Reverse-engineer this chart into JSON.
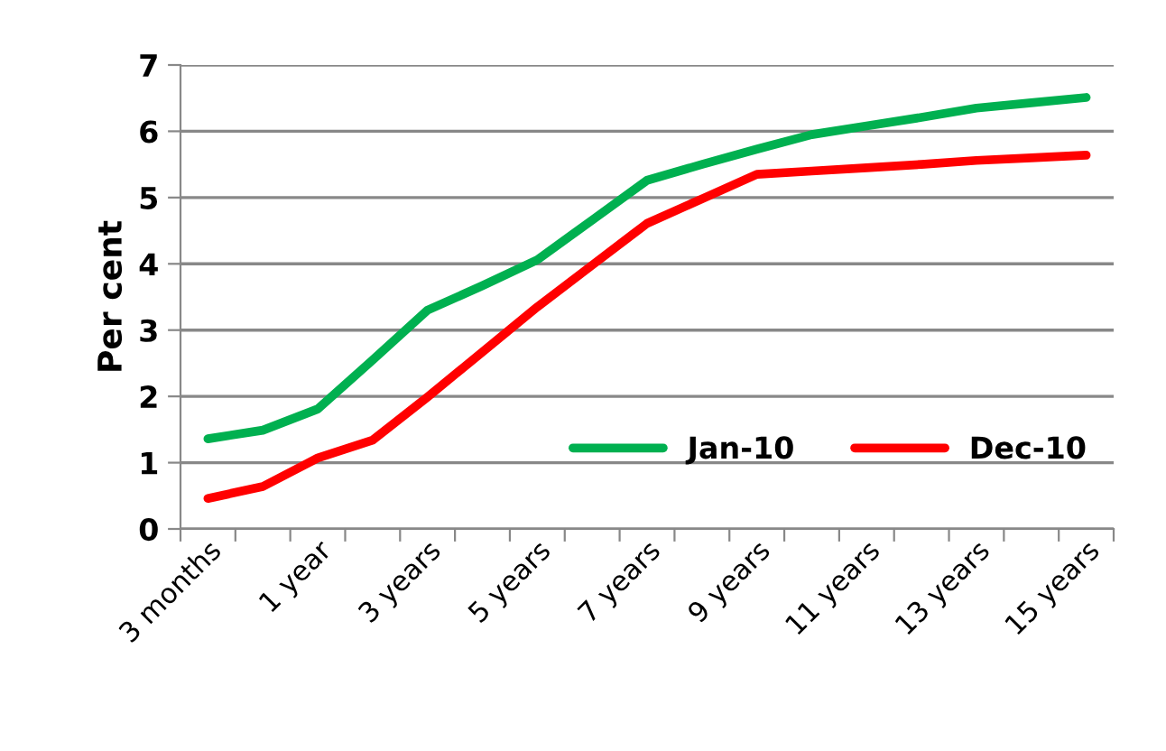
{
  "chart_data": {
    "type": "line",
    "ylabel": "Per cent",
    "categories": [
      "3 months",
      null,
      "1 year",
      null,
      "3 years",
      null,
      "5 years",
      null,
      "7 years",
      null,
      "9 years",
      null,
      "11 years",
      null,
      "13 years",
      null,
      "15 years"
    ],
    "series": [
      {
        "name": "Jan-10",
        "color": "#00b050",
        "values": [
          1.36,
          1.49,
          1.81,
          2.55,
          3.3,
          3.67,
          4.06,
          4.66,
          5.26,
          5.5,
          5.73,
          5.95,
          6.08,
          6.21,
          6.35,
          6.43,
          6.51
        ]
      },
      {
        "name": "Dec-10",
        "color": "#ff0000",
        "values": [
          0.46,
          0.64,
          1.07,
          1.34,
          1.99,
          2.67,
          3.35,
          3.98,
          4.61,
          4.98,
          5.35,
          5.4,
          5.45,
          5.5,
          5.56,
          5.6,
          5.64
        ]
      }
    ],
    "ylim": [
      0,
      7
    ],
    "yticks": [
      0,
      1,
      2,
      3,
      4,
      5,
      6,
      7
    ],
    "grid": "y",
    "legend": "lower right",
    "marker": "none",
    "line_style": "solid"
  }
}
